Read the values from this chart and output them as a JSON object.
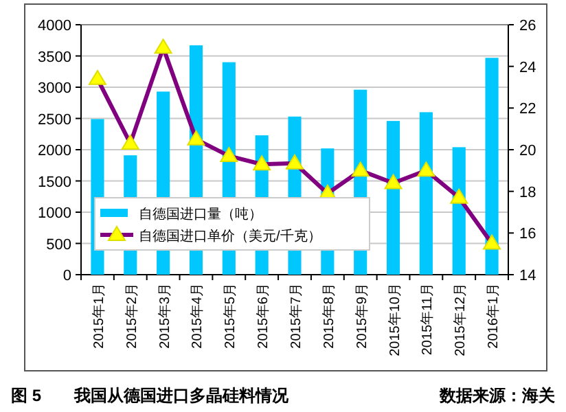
{
  "chart_data": {
    "type": "bar",
    "title": "图 5　　我国从德国进口多晶硅料情况",
    "annotations": [
      "数据来源：海关"
    ],
    "categories": [
      "2015年1月",
      "2015年2月",
      "2015年3月",
      "2015年4月",
      "2015年5月",
      "2015年6月",
      "2015年7月",
      "2015年8月",
      "2015年9月",
      "2015年10月",
      "2015年11月",
      "2015年12月",
      "2016年1月"
    ],
    "series": [
      {
        "name": "自德国进口量（吨）",
        "color": "#00c8ff",
        "values": [
          2490,
          1910,
          2930,
          3670,
          3400,
          2230,
          2530,
          2020,
          2960,
          2460,
          2600,
          2040,
          3470
        ]
      },
      {
        "name": "自德国进口单价（美元/千克）",
        "type": "line",
        "axis": "y2",
        "color": "#800080",
        "values": [
          23.4,
          20.3,
          24.9,
          20.5,
          19.7,
          19.3,
          19.35,
          17.9,
          19.0,
          18.4,
          19.0,
          17.7,
          15.5
        ]
      }
    ],
    "ylim": [
      0,
      4000
    ],
    "yticks": [
      0,
      500,
      1000,
      1500,
      2000,
      2500,
      3000,
      3500,
      4000
    ],
    "y2lim": [
      14,
      26
    ],
    "y2ticks": [
      14,
      16,
      18,
      20,
      22,
      24,
      26
    ],
    "grid": "y",
    "legend": "bottom left",
    "marker": "triangle",
    "line_style": "solid"
  }
}
